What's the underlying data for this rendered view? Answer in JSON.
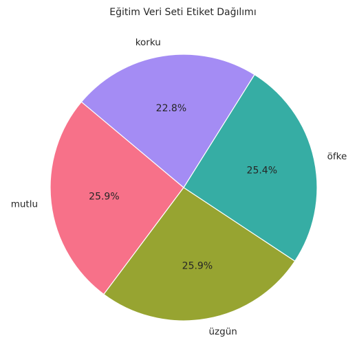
{
  "chart_data": {
    "type": "pie",
    "title": "Eğitim Veri Seti Etiket Dağılımı",
    "categories": [
      "mutlu",
      "üzgün",
      "öfke",
      "korku"
    ],
    "values": [
      25.9,
      25.9,
      25.4,
      22.8
    ],
    "value_labels": [
      "25.9%",
      "25.9%",
      "25.4%",
      "22.8%"
    ],
    "colors": [
      "#f77189",
      "#97a431",
      "#36ada4",
      "#a48cf4"
    ],
    "start_angle_deg": 140,
    "direction": "counterclockwise",
    "edge_color": "#ffffff"
  }
}
